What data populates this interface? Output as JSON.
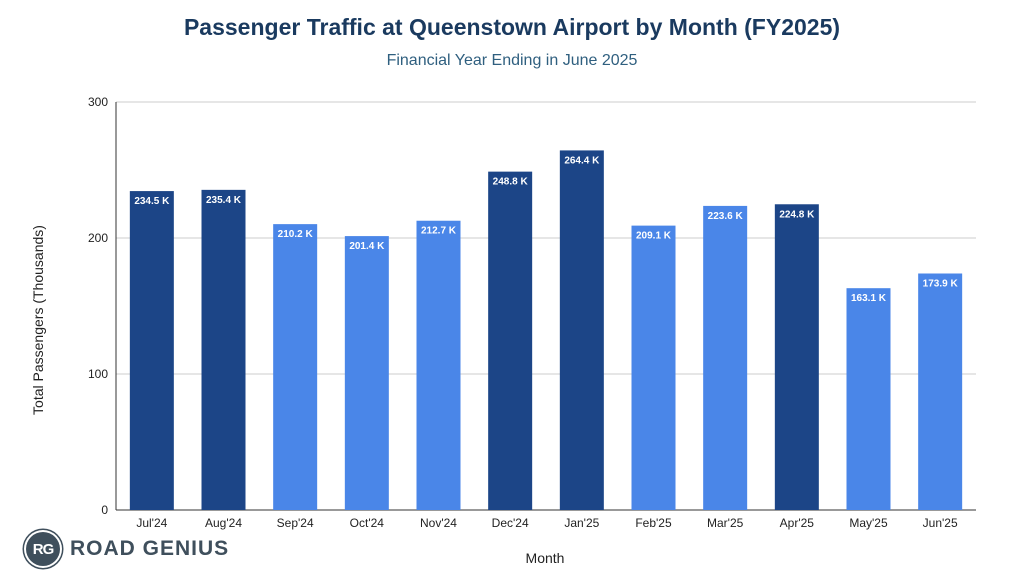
{
  "chart_data": {
    "type": "bar",
    "title": "Passenger Traffic at Queenstown Airport by Month (FY2025)",
    "subtitle": "Financial Year Ending in June 2025",
    "xlabel": "Month",
    "ylabel": "Total Passengers (Thousands)",
    "ylim": [
      0,
      300
    ],
    "yticks": [
      0,
      100,
      200,
      300
    ],
    "grid": true,
    "categories": [
      "Jul'24",
      "Aug'24",
      "Sep'24",
      "Oct'24",
      "Nov'24",
      "Dec'24",
      "Jan'25",
      "Feb'25",
      "Mar'25",
      "Apr'25",
      "May'25",
      "Jun'25"
    ],
    "values": [
      234.5,
      235.4,
      210.2,
      201.4,
      212.7,
      248.8,
      264.4,
      209.1,
      223.6,
      224.8,
      163.1,
      173.9
    ],
    "data_labels": [
      "234.5 K",
      "235.4 K",
      "210.2 K",
      "201.4 K",
      "212.7 K",
      "248.8 K",
      "264.4 K",
      "209.1 K",
      "223.6 K",
      "224.8 K",
      "163.1 K",
      "173.9 K"
    ],
    "bar_colors": [
      "#1c4587",
      "#1c4587",
      "#4a86e8",
      "#4a86e8",
      "#4a86e8",
      "#1c4587",
      "#1c4587",
      "#4a86e8",
      "#4a86e8",
      "#1c4587",
      "#4a86e8",
      "#4a86e8"
    ]
  },
  "logo": {
    "badge": "RG",
    "text": "ROAD GENIUS"
  }
}
